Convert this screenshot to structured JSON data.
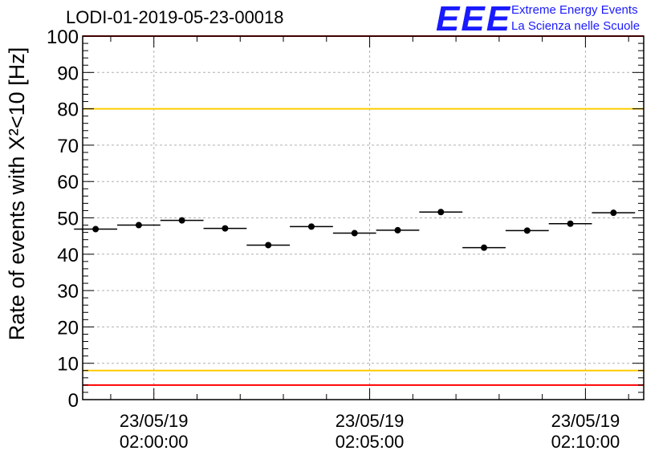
{
  "title": "LODI-01-2019-05-23-00018",
  "logo": {
    "mark": "EEE",
    "line1": "Extreme Energy Events",
    "line2": "La Scienza nelle Scuole"
  },
  "colors": {
    "threshold_red": "#ff0000",
    "threshold_yellow": "#ffcc00",
    "logo_blue": "#1a1aff",
    "grid": "#b0b0b0"
  },
  "chart_data": {
    "type": "scatter",
    "ylabel": "Rate of events with X²<10 [Hz]",
    "ylim": [
      0,
      100
    ],
    "yticks": [
      0,
      10,
      20,
      30,
      40,
      50,
      60,
      70,
      80,
      90,
      100
    ],
    "xlim_minutes": [
      -1.65,
      11.35
    ],
    "xticks": [
      {
        "minute": 0,
        "date": "23/05/19",
        "time": "02:00:00"
      },
      {
        "minute": 5,
        "date": "23/05/19",
        "time": "02:05:00"
      },
      {
        "minute": 10,
        "date": "23/05/19",
        "time": "02:10:00"
      }
    ],
    "grid": true,
    "bin_width_minutes": 1,
    "points": [
      {
        "x": -1.35,
        "y": 46.9
      },
      {
        "x": -0.35,
        "y": 48.0
      },
      {
        "x": 0.65,
        "y": 49.3
      },
      {
        "x": 1.65,
        "y": 47.1
      },
      {
        "x": 2.65,
        "y": 42.5
      },
      {
        "x": 3.65,
        "y": 47.6
      },
      {
        "x": 4.65,
        "y": 45.8
      },
      {
        "x": 5.65,
        "y": 46.6
      },
      {
        "x": 6.65,
        "y": 51.6
      },
      {
        "x": 7.65,
        "y": 41.8
      },
      {
        "x": 8.65,
        "y": 46.5
      },
      {
        "x": 9.65,
        "y": 48.4
      },
      {
        "x": 10.65,
        "y": 51.4
      }
    ],
    "thresholds": [
      {
        "y": 100,
        "color": "red"
      },
      {
        "y": 80,
        "color": "yellow"
      },
      {
        "y": 8,
        "color": "yellow"
      },
      {
        "y": 4,
        "color": "red"
      }
    ]
  }
}
